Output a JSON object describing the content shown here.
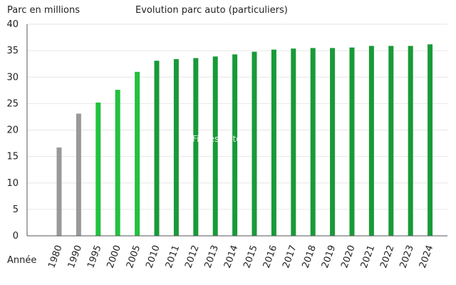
{
  "chart_data": {
    "type": "bar",
    "title": "Evolution parc auto (particuliers)",
    "ylabel": "Parc en millions",
    "xlabel": "Année",
    "watermark": "Fiches-auto.fr",
    "ylim": [
      0,
      40
    ],
    "yticks": [
      "0",
      "5",
      "10",
      "15",
      "20",
      "25",
      "30",
      "35",
      "40"
    ],
    "grid": true,
    "categories": [
      "1980",
      "1990",
      "1995",
      "2000",
      "2005",
      "2010",
      "2011",
      "2012",
      "2013",
      "2014",
      "2015",
      "2016",
      "2017",
      "2018",
      "2019",
      "2020",
      "2021",
      "2022",
      "2023",
      "2024"
    ],
    "values": [
      16.7,
      23.1,
      25.2,
      27.6,
      31.0,
      33.1,
      33.4,
      33.6,
      33.9,
      34.3,
      34.8,
      35.2,
      35.4,
      35.5,
      35.5,
      35.6,
      35.9,
      35.9,
      35.9,
      36.2
    ],
    "bar_colors": [
      "#999999",
      "#999999",
      "#22c13e",
      "#22c13e",
      "#22c13e",
      "#189a38",
      "#189a38",
      "#189a38",
      "#189a38",
      "#189a38",
      "#189a38",
      "#189a38",
      "#189a38",
      "#189a38",
      "#189a38",
      "#189a38",
      "#189a38",
      "#189a38",
      "#189a38",
      "#189a38"
    ]
  }
}
